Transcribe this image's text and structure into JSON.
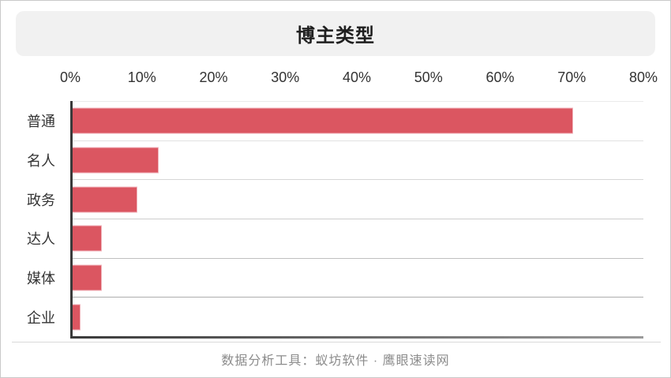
{
  "page": {
    "background": "#ffffff",
    "border_color": "#c9c9c9"
  },
  "header": {
    "title": "博主类型",
    "banner_color": "#f1f1f1",
    "title_color": "#1f1f1f"
  },
  "footer": {
    "text": "数据分析工具：蚁坊软件 · 鹰眼速读网",
    "text_color": "#8c8c8c"
  },
  "chart_data": {
    "type": "bar",
    "orientation": "horizontal",
    "title": "博主类型",
    "categories": [
      "普通",
      "名人",
      "政务",
      "达人",
      "媒体",
      "企业"
    ],
    "values": [
      70,
      12,
      9,
      4,
      4,
      1
    ],
    "value_unit": "%",
    "x_ticks": [
      "0%",
      "10%",
      "20%",
      "30%",
      "40%",
      "50%",
      "60%",
      "70%",
      "80%"
    ],
    "xlim": [
      0,
      80
    ],
    "grid": true,
    "legend": false,
    "colors": {
      "bar_fill": "#db5661",
      "bar_stroke": "#f0b2ba",
      "axis_line": "#3a3a3a",
      "grid_line": "#d6d6d6",
      "tick_label": "#333333",
      "category_label": "#333333"
    }
  }
}
